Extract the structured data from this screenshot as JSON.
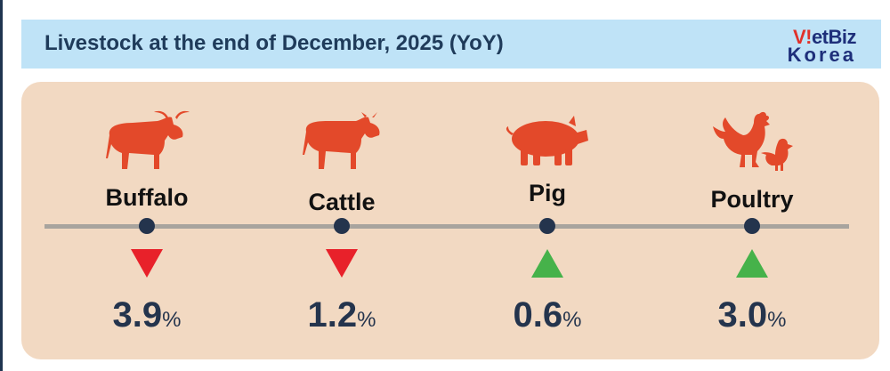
{
  "header": {
    "title": "Livestock at the end of December, 2025 (YoY)",
    "logo_line1_prefix": "V!",
    "logo_line1_rest": "etBiz",
    "logo_line2": "Korea"
  },
  "items": [
    {
      "name": "Buffalo",
      "icon": "buffalo-icon",
      "direction": "down",
      "value": "3.9",
      "unit": "%",
      "arrow_color": "#e8212a"
    },
    {
      "name": "Cattle",
      "icon": "cattle-icon",
      "direction": "down",
      "value": "1.2",
      "unit": "%",
      "arrow_color": "#e8212a"
    },
    {
      "name": "Pig",
      "icon": "pig-icon",
      "direction": "up",
      "value": "0.6",
      "unit": "%",
      "arrow_color": "#46b24a"
    },
    {
      "name": "Poultry",
      "icon": "poultry-icon",
      "direction": "up",
      "value": "3.0",
      "unit": "%",
      "arrow_color": "#46b24a"
    }
  ],
  "colors": {
    "animal": "#e3492a",
    "header_bg": "#bfe3f7",
    "panel_bg": "#f2d9c2",
    "dot": "#24344d"
  }
}
